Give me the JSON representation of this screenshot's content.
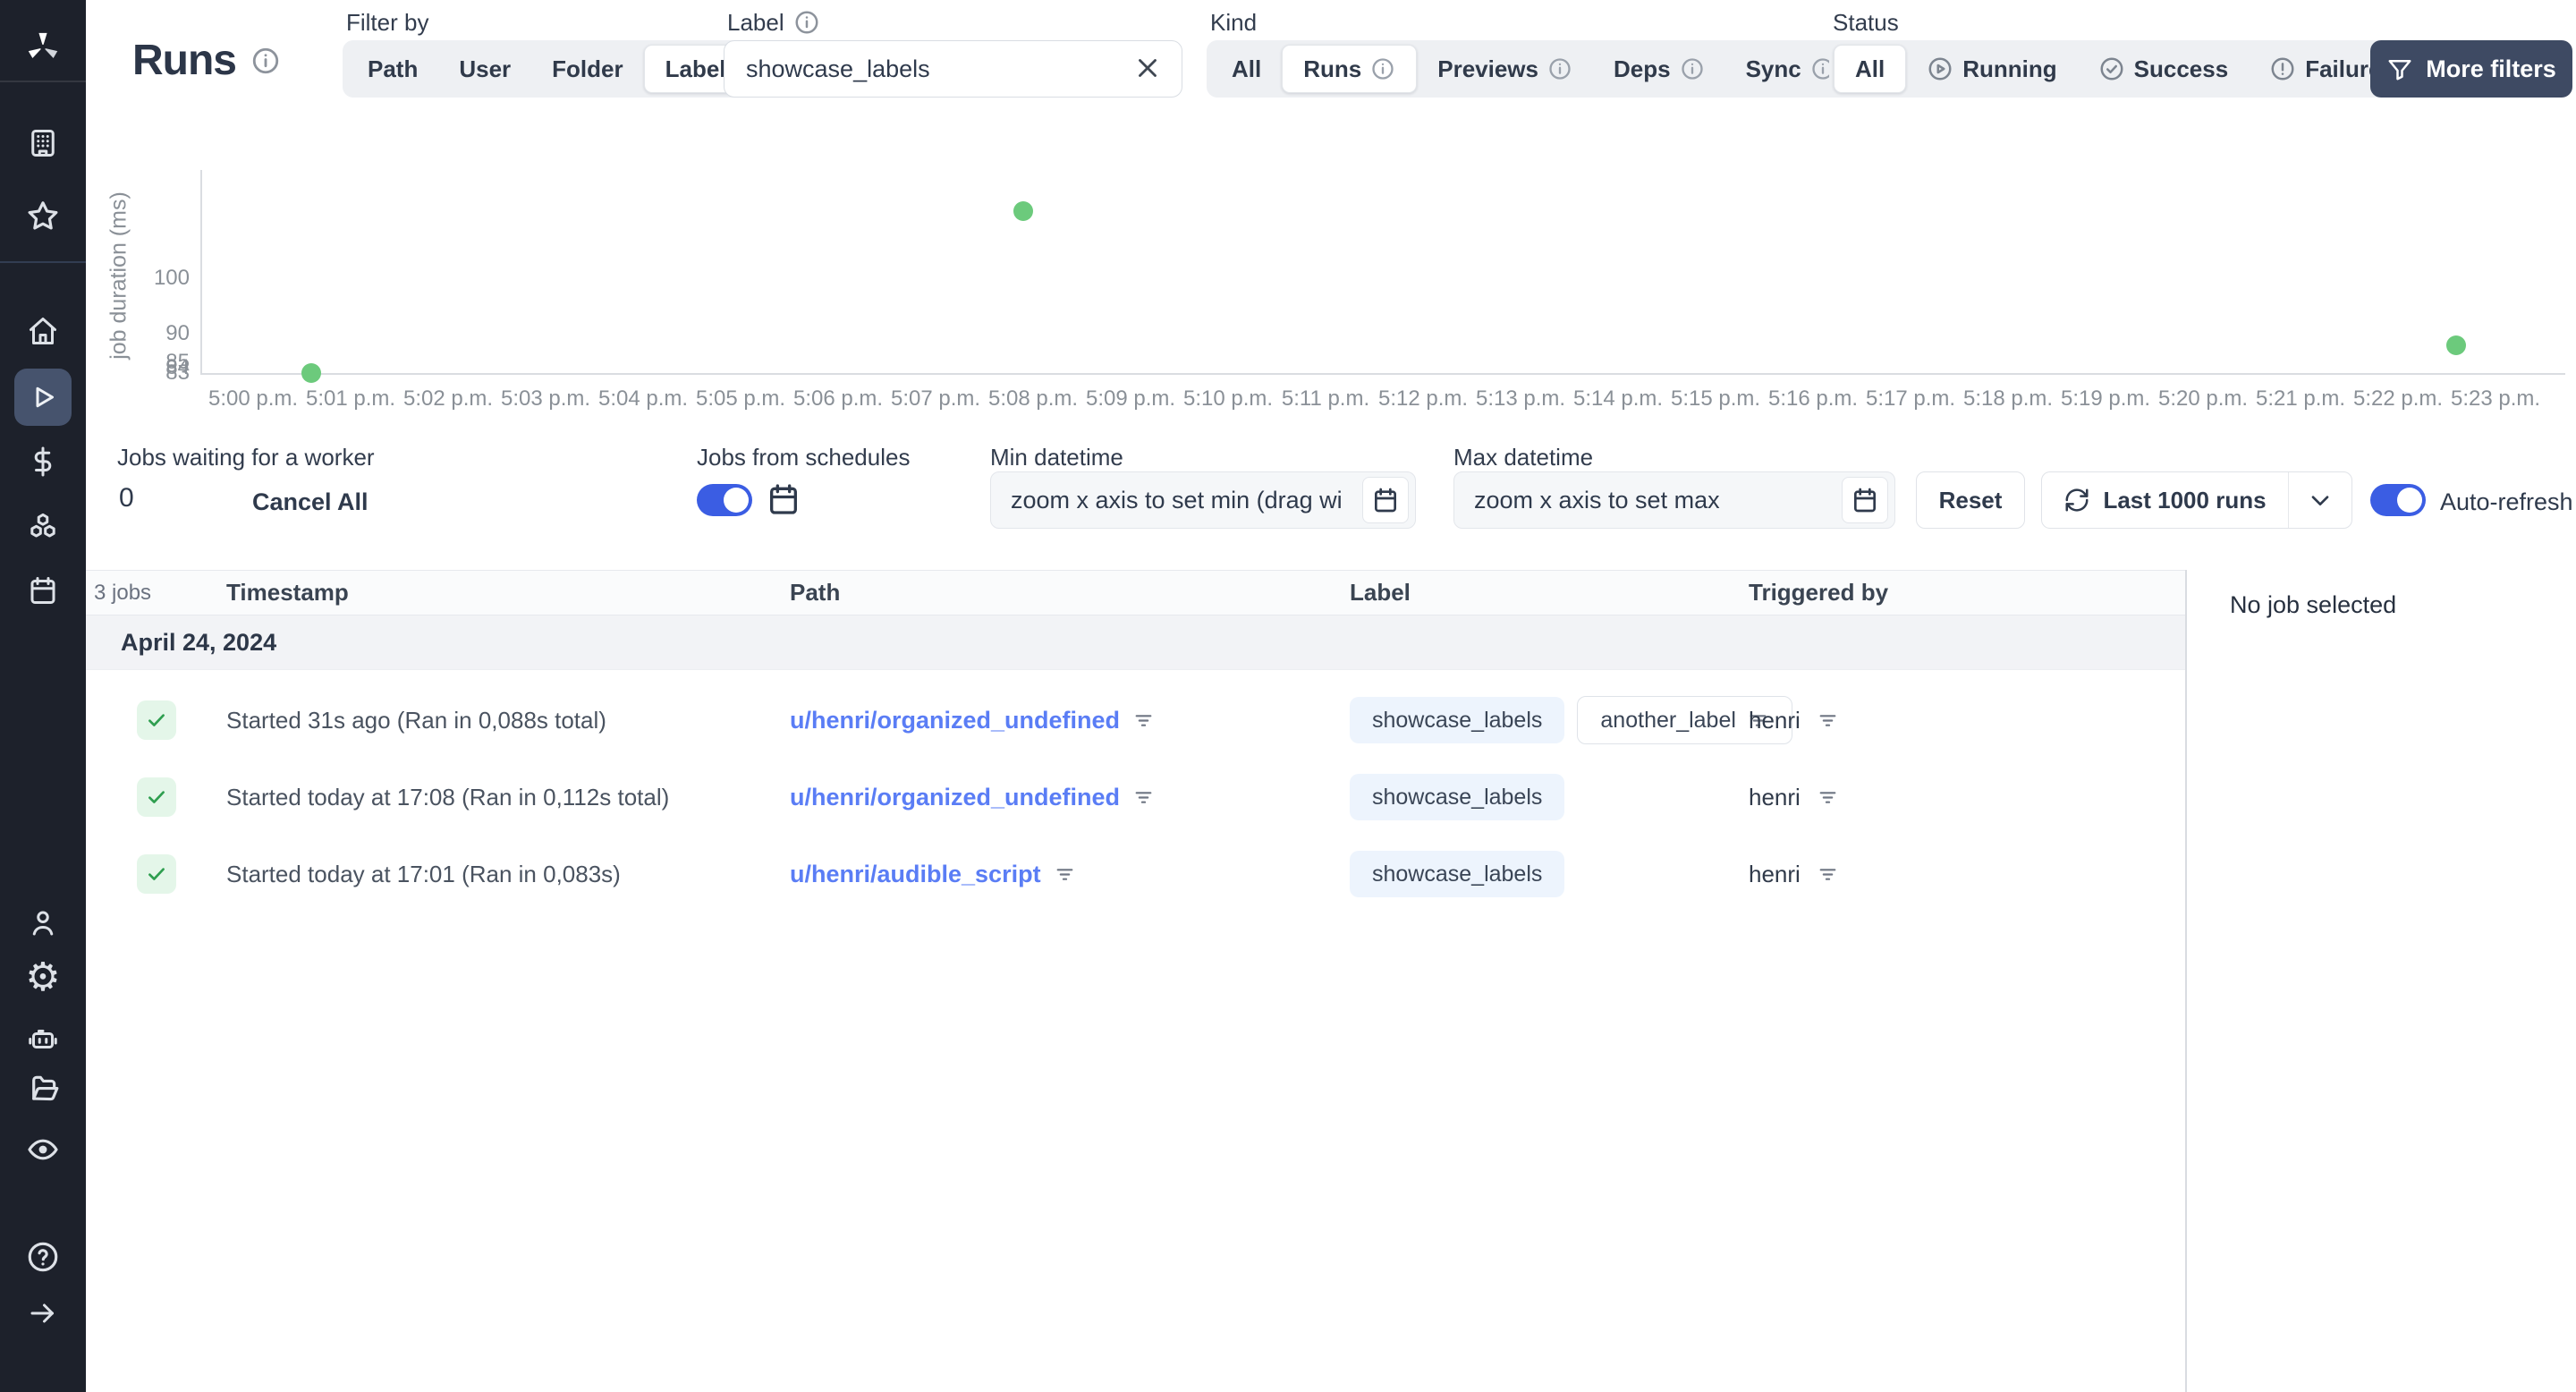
{
  "colors": {
    "accent_blue": "#3b5de3",
    "link_blue": "#5a7df5",
    "success_green": "#6cca7c",
    "check_green": "#2e9e4f",
    "sidebar_bg": "#1d212b",
    "dark_button_bg": "#3e4a63",
    "label_pill_bg": "#edf4fd"
  },
  "sidebar": {
    "logo_icon": "windmill-logo",
    "icons": [
      "building-icon",
      "star-icon",
      "home-icon",
      "play-icon",
      "dollar-icon",
      "boxes-icon",
      "calendar-icon",
      "user-icon",
      "gear-icon",
      "robot-icon",
      "folder-open-icon",
      "eye-icon",
      "help-circle-icon",
      "arrow-right-icon"
    ],
    "active": "play-icon"
  },
  "header": {
    "title": "Runs",
    "filter_by": {
      "label": "Filter by",
      "options": [
        "Path",
        "User",
        "Folder",
        "Label"
      ],
      "selected": "Label"
    },
    "label_filter": {
      "label": "Label",
      "value": "showcase_labels",
      "clear_icon": "x-icon"
    },
    "kind": {
      "label": "Kind",
      "options": [
        "All",
        "Runs",
        "Previews",
        "Deps",
        "Sync"
      ],
      "selected": "Runs"
    },
    "status": {
      "label": "Status",
      "options": [
        "All",
        "Running",
        "Success",
        "Failure"
      ],
      "selected": "All",
      "icons": [
        "",
        "play-circle-icon",
        "check-circle-icon",
        "alert-circle-icon"
      ]
    },
    "more_filters": "More filters"
  },
  "chart_data": {
    "type": "scatter",
    "title": "",
    "xlabel": "",
    "ylabel": "job duration (ms)",
    "x_tick_labels": [
      "5:00 p.m.",
      "5:01 p.m.",
      "5:02 p.m.",
      "5:03 p.m.",
      "5:04 p.m.",
      "5:05 p.m.",
      "5:06 p.m.",
      "5:07 p.m.",
      "5:08 p.m.",
      "5:09 p.m.",
      "5:10 p.m.",
      "5:11 p.m.",
      "5:12 p.m.",
      "5:13 p.m.",
      "5:14 p.m.",
      "5:15 p.m.",
      "5:16 p.m.",
      "5:17 p.m.",
      "5:18 p.m.",
      "5:19 p.m.",
      "5:20 p.m.",
      "5:21 p.m.",
      "5:22 p.m.",
      "5:23 p.m."
    ],
    "y_ticks": [
      100,
      90,
      85,
      84,
      83
    ],
    "ylim": [
      83,
      117
    ],
    "points": [
      {
        "x_min": 0.6,
        "y_ms": 83
      },
      {
        "x_min": 7.9,
        "y_ms": 112
      },
      {
        "x_min": 22.6,
        "y_ms": 88
      }
    ],
    "point_color": "#6cca7c",
    "grid": false,
    "legend": null
  },
  "controls": {
    "jobs_waiting": {
      "label": "Jobs waiting for a worker",
      "count": "0",
      "cancel_all": "Cancel All"
    },
    "schedules": {
      "label": "Jobs from schedules",
      "toggle_on": true,
      "calendar_icon": "calendar-icon"
    },
    "min_datetime": {
      "label": "Min datetime",
      "placeholder": "zoom x axis to set min (drag wi"
    },
    "max_datetime": {
      "label": "Max datetime",
      "placeholder": "zoom x axis to set max"
    },
    "reset": "Reset",
    "runs_range": "Last 1000 runs",
    "auto_refresh": {
      "label": "Auto-refresh",
      "toggle_on": true
    }
  },
  "table": {
    "jobs_count": "3 jobs",
    "columns": [
      "Timestamp",
      "Path",
      "Label",
      "Triggered by"
    ],
    "group_date": "April 24, 2024",
    "rows": [
      {
        "status": "success",
        "timestamp": "Started 31s ago (Ran in 0,088s total)",
        "path": "u/henri/organized_undefined",
        "labels": [
          {
            "text": "showcase_labels",
            "variant": "blue"
          },
          {
            "text": "another_label",
            "variant": "outline"
          }
        ],
        "triggered_by": "henri"
      },
      {
        "status": "success",
        "timestamp": "Started today at 17:08 (Ran in 0,112s total)",
        "path": "u/henri/organized_undefined",
        "labels": [
          {
            "text": "showcase_labels",
            "variant": "blue"
          }
        ],
        "triggered_by": "henri"
      },
      {
        "status": "success",
        "timestamp": "Started today at 17:01 (Ran in 0,083s)",
        "path": "u/henri/audible_script",
        "labels": [
          {
            "text": "showcase_labels",
            "variant": "blue"
          }
        ],
        "triggered_by": "henri"
      }
    ]
  },
  "detail_panel": {
    "empty": "No job selected"
  }
}
